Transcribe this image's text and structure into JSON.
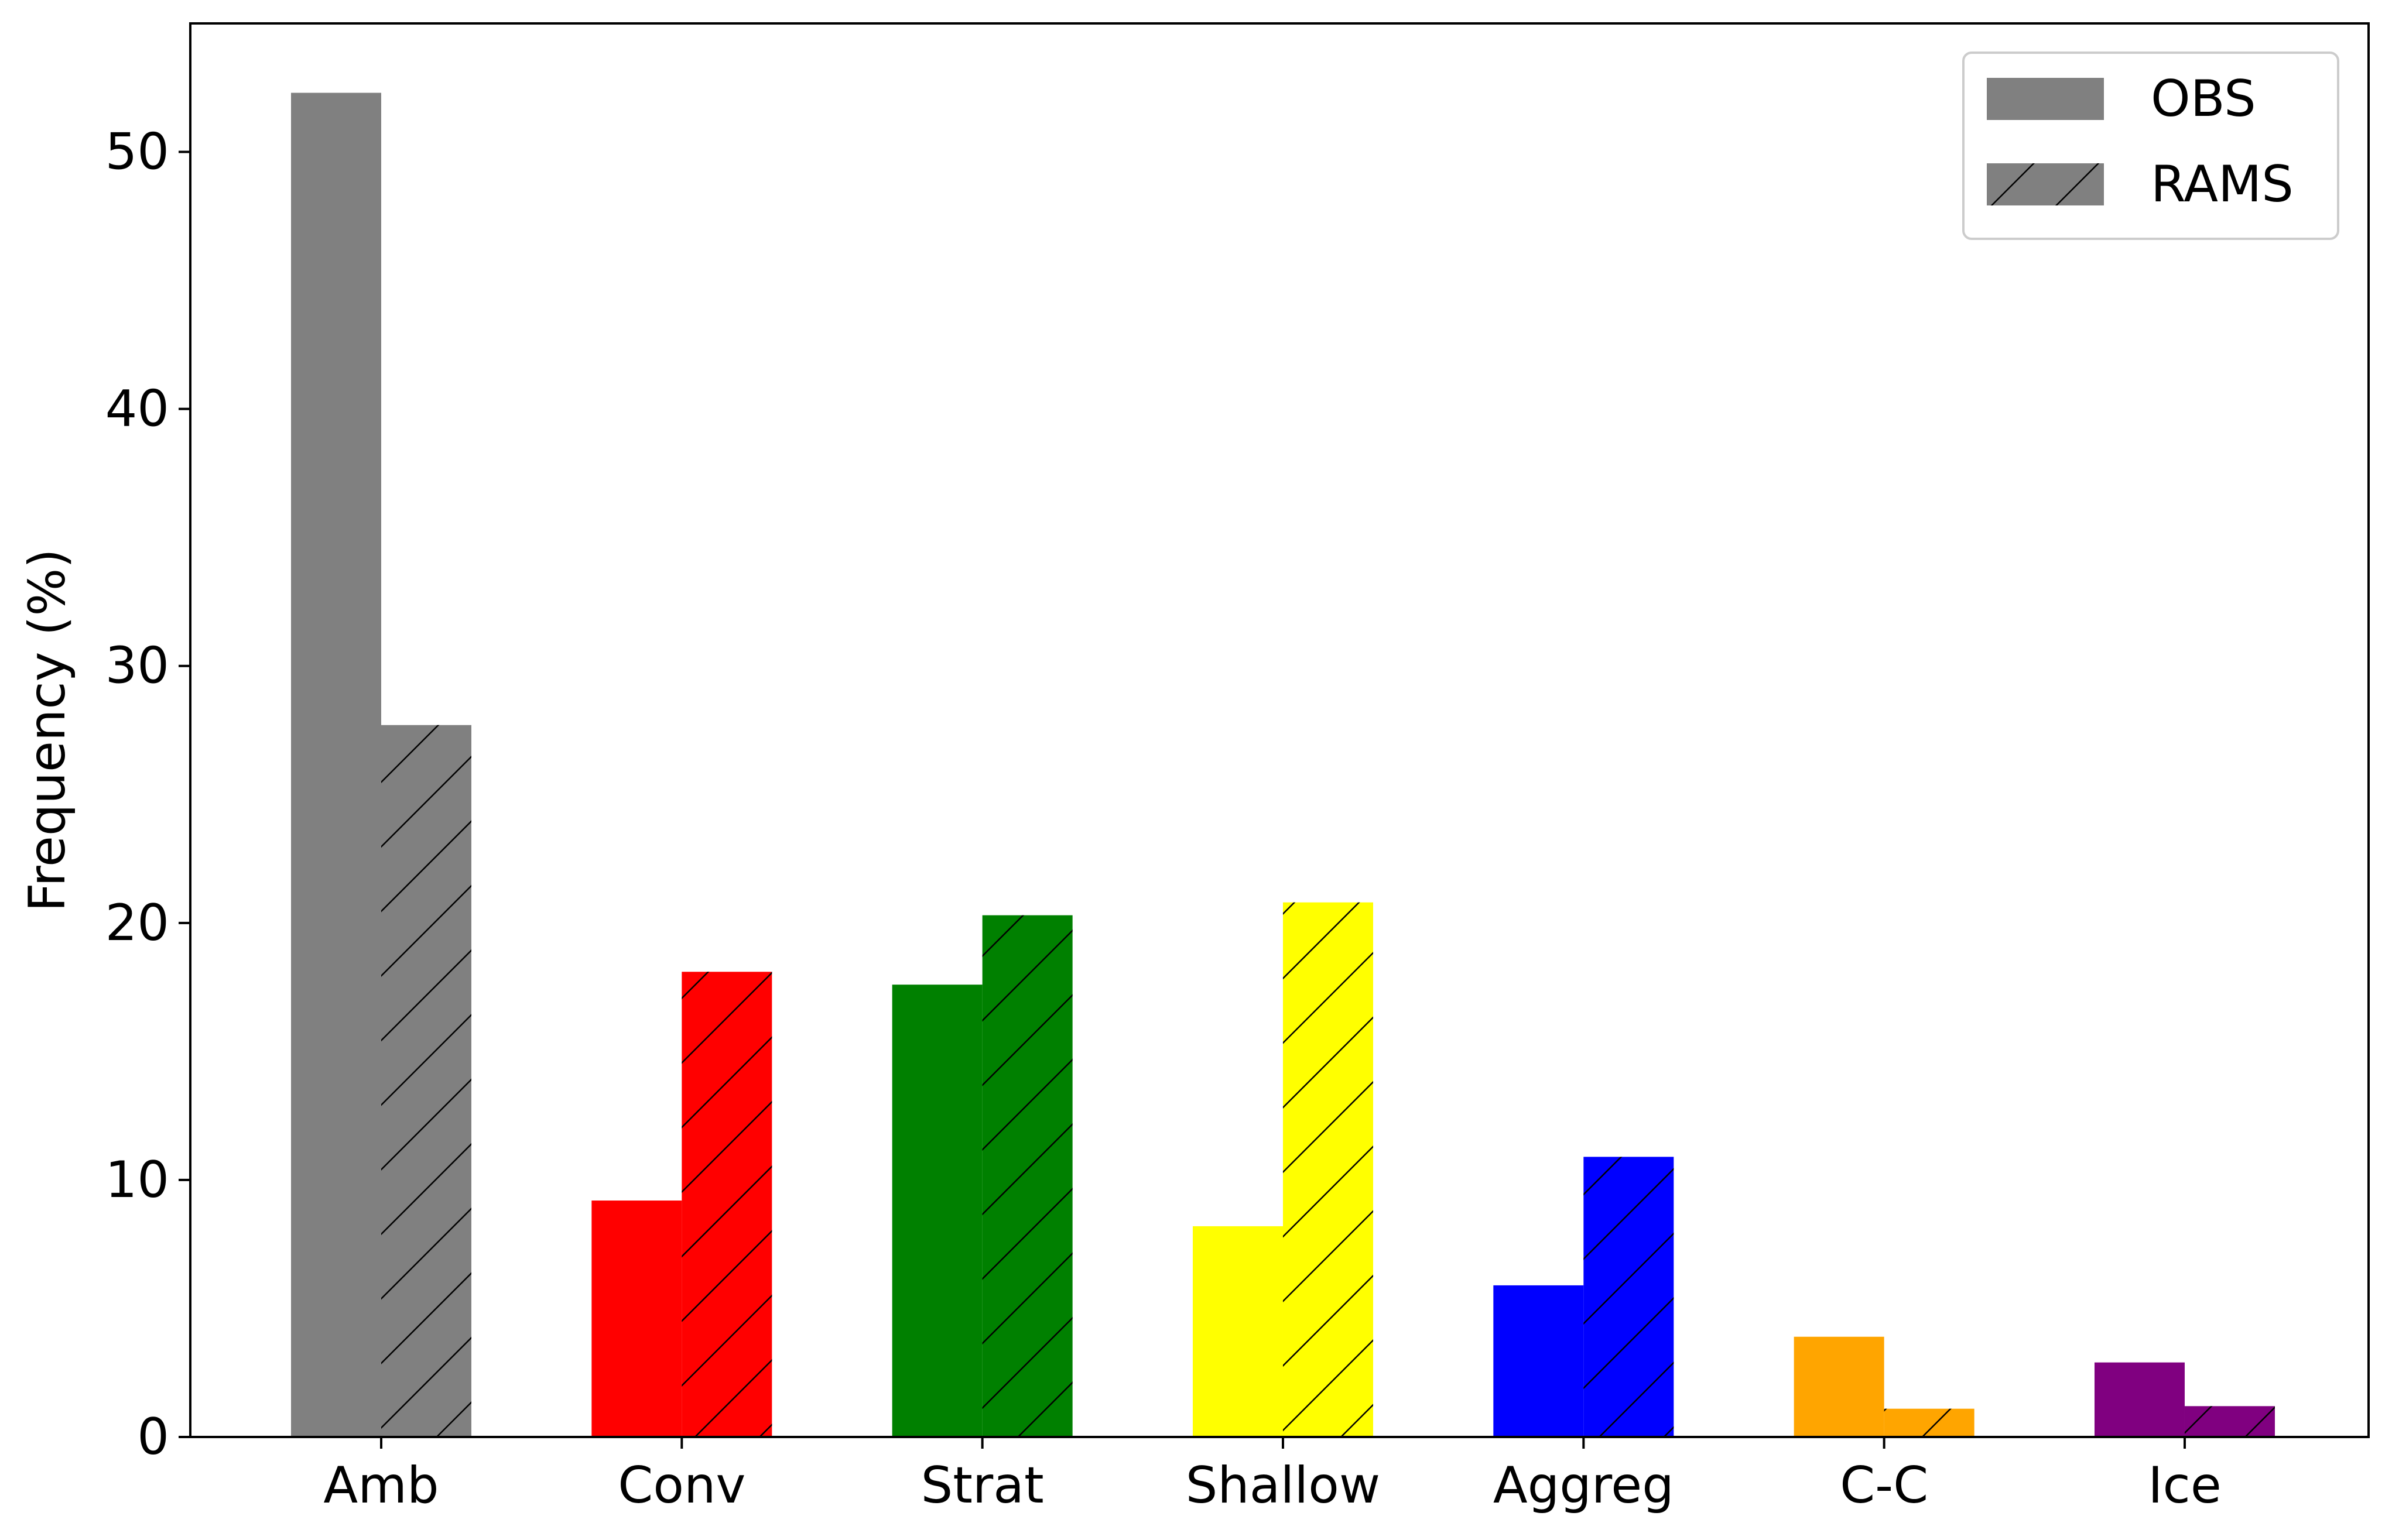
{
  "chart_data": {
    "type": "bar",
    "title": "",
    "xlabel": "",
    "ylabel": "Frequency (%)",
    "categories": [
      "Amb",
      "Conv",
      "Strat",
      "Shallow",
      "Aggreg",
      "C-C",
      "Ice"
    ],
    "colors": [
      "#808080",
      "#ff0000",
      "#008000",
      "#ffff00",
      "#0000ff",
      "#ffa500",
      "#800080"
    ],
    "series": [
      {
        "name": "OBS",
        "pattern": "solid",
        "values": [
          52.3,
          9.2,
          17.6,
          8.2,
          5.9,
          3.9,
          2.9
        ]
      },
      {
        "name": "RAMS",
        "pattern": "hatch-diagonal",
        "values": [
          27.7,
          18.1,
          20.3,
          20.8,
          10.9,
          1.1,
          1.2
        ]
      }
    ],
    "ylim": [
      0,
      55
    ],
    "yticks": [
      0,
      10,
      20,
      30,
      40,
      50
    ],
    "grid": false,
    "legend_position": "top-right"
  }
}
